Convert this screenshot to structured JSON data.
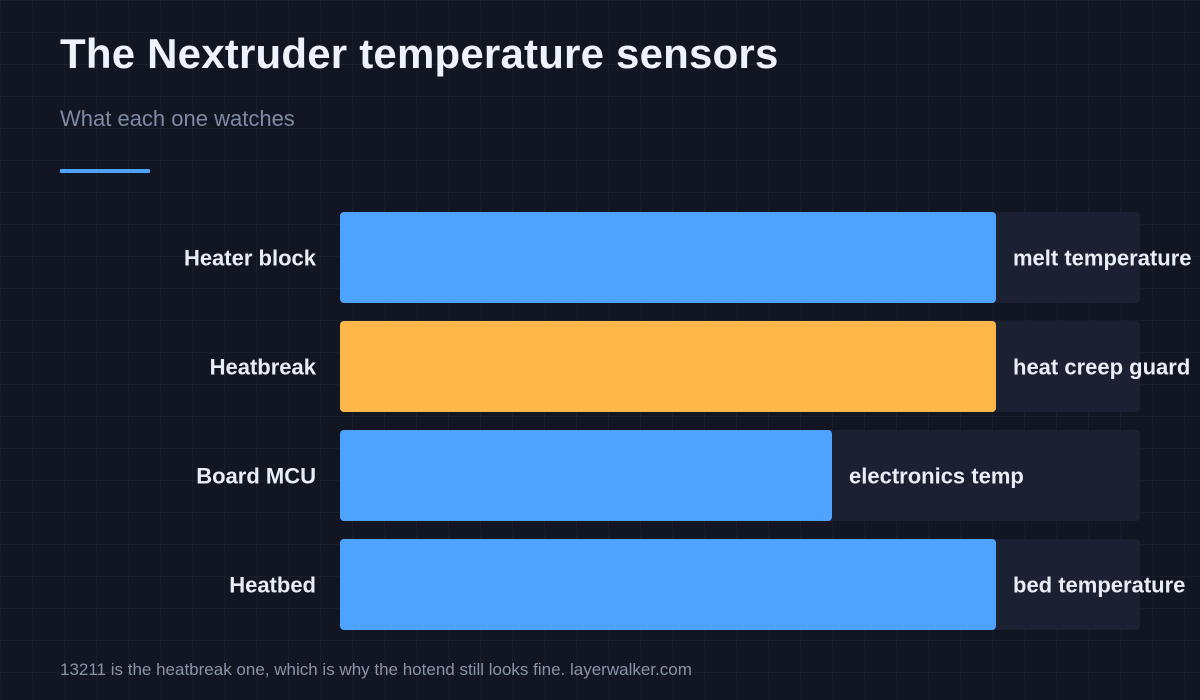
{
  "header": {
    "title": "The Nextruder temperature sensors",
    "subtitle": "What each one watches"
  },
  "footer": {
    "caption": "13211 is the heatbreak one, which is why the hotend still looks fine. layerwalker.com"
  },
  "colors": {
    "primary_bar": "#4ea3ff",
    "highlight_bar": "#ffb74a",
    "track": "#1b2133",
    "label": "#e9edf6",
    "accent": "#4ea3ff"
  },
  "chart_data": {
    "type": "bar",
    "orientation": "horizontal",
    "categories": [
      "Heater block",
      "Heatbreak",
      "Board MCU",
      "Heatbed"
    ],
    "values": [
      82,
      82,
      61.5,
      82
    ],
    "max": 100,
    "bar_labels": [
      "melt temperature",
      "heat creep guard",
      "electronics temp",
      "bed temperature"
    ],
    "highlight_index": 1,
    "grid": false,
    "legend": "none"
  }
}
